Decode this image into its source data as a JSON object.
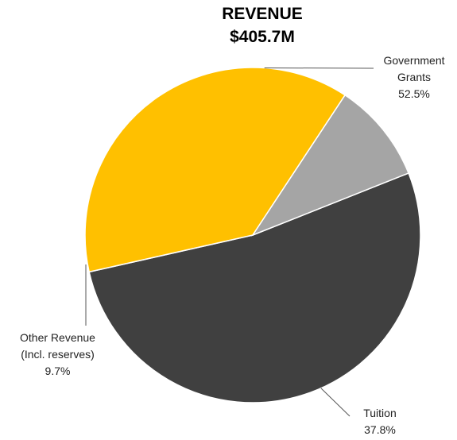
{
  "chart_data": {
    "type": "pie",
    "title": "REVENUE",
    "subtitle": "$405.7M",
    "slices": [
      {
        "label_lines": [
          "Government",
          "Grants"
        ],
        "pct_label": "52.5%",
        "value": 52.5,
        "color": "#404040"
      },
      {
        "label_lines": [
          "Tuition"
        ],
        "pct_label": "37.8%",
        "value": 37.8,
        "color": "#FFC000"
      },
      {
        "label_lines": [
          "Other Revenue",
          "(Incl. reserves)"
        ],
        "pct_label": "9.7%",
        "value": 9.7,
        "color": "#A5A5A5"
      }
    ]
  }
}
